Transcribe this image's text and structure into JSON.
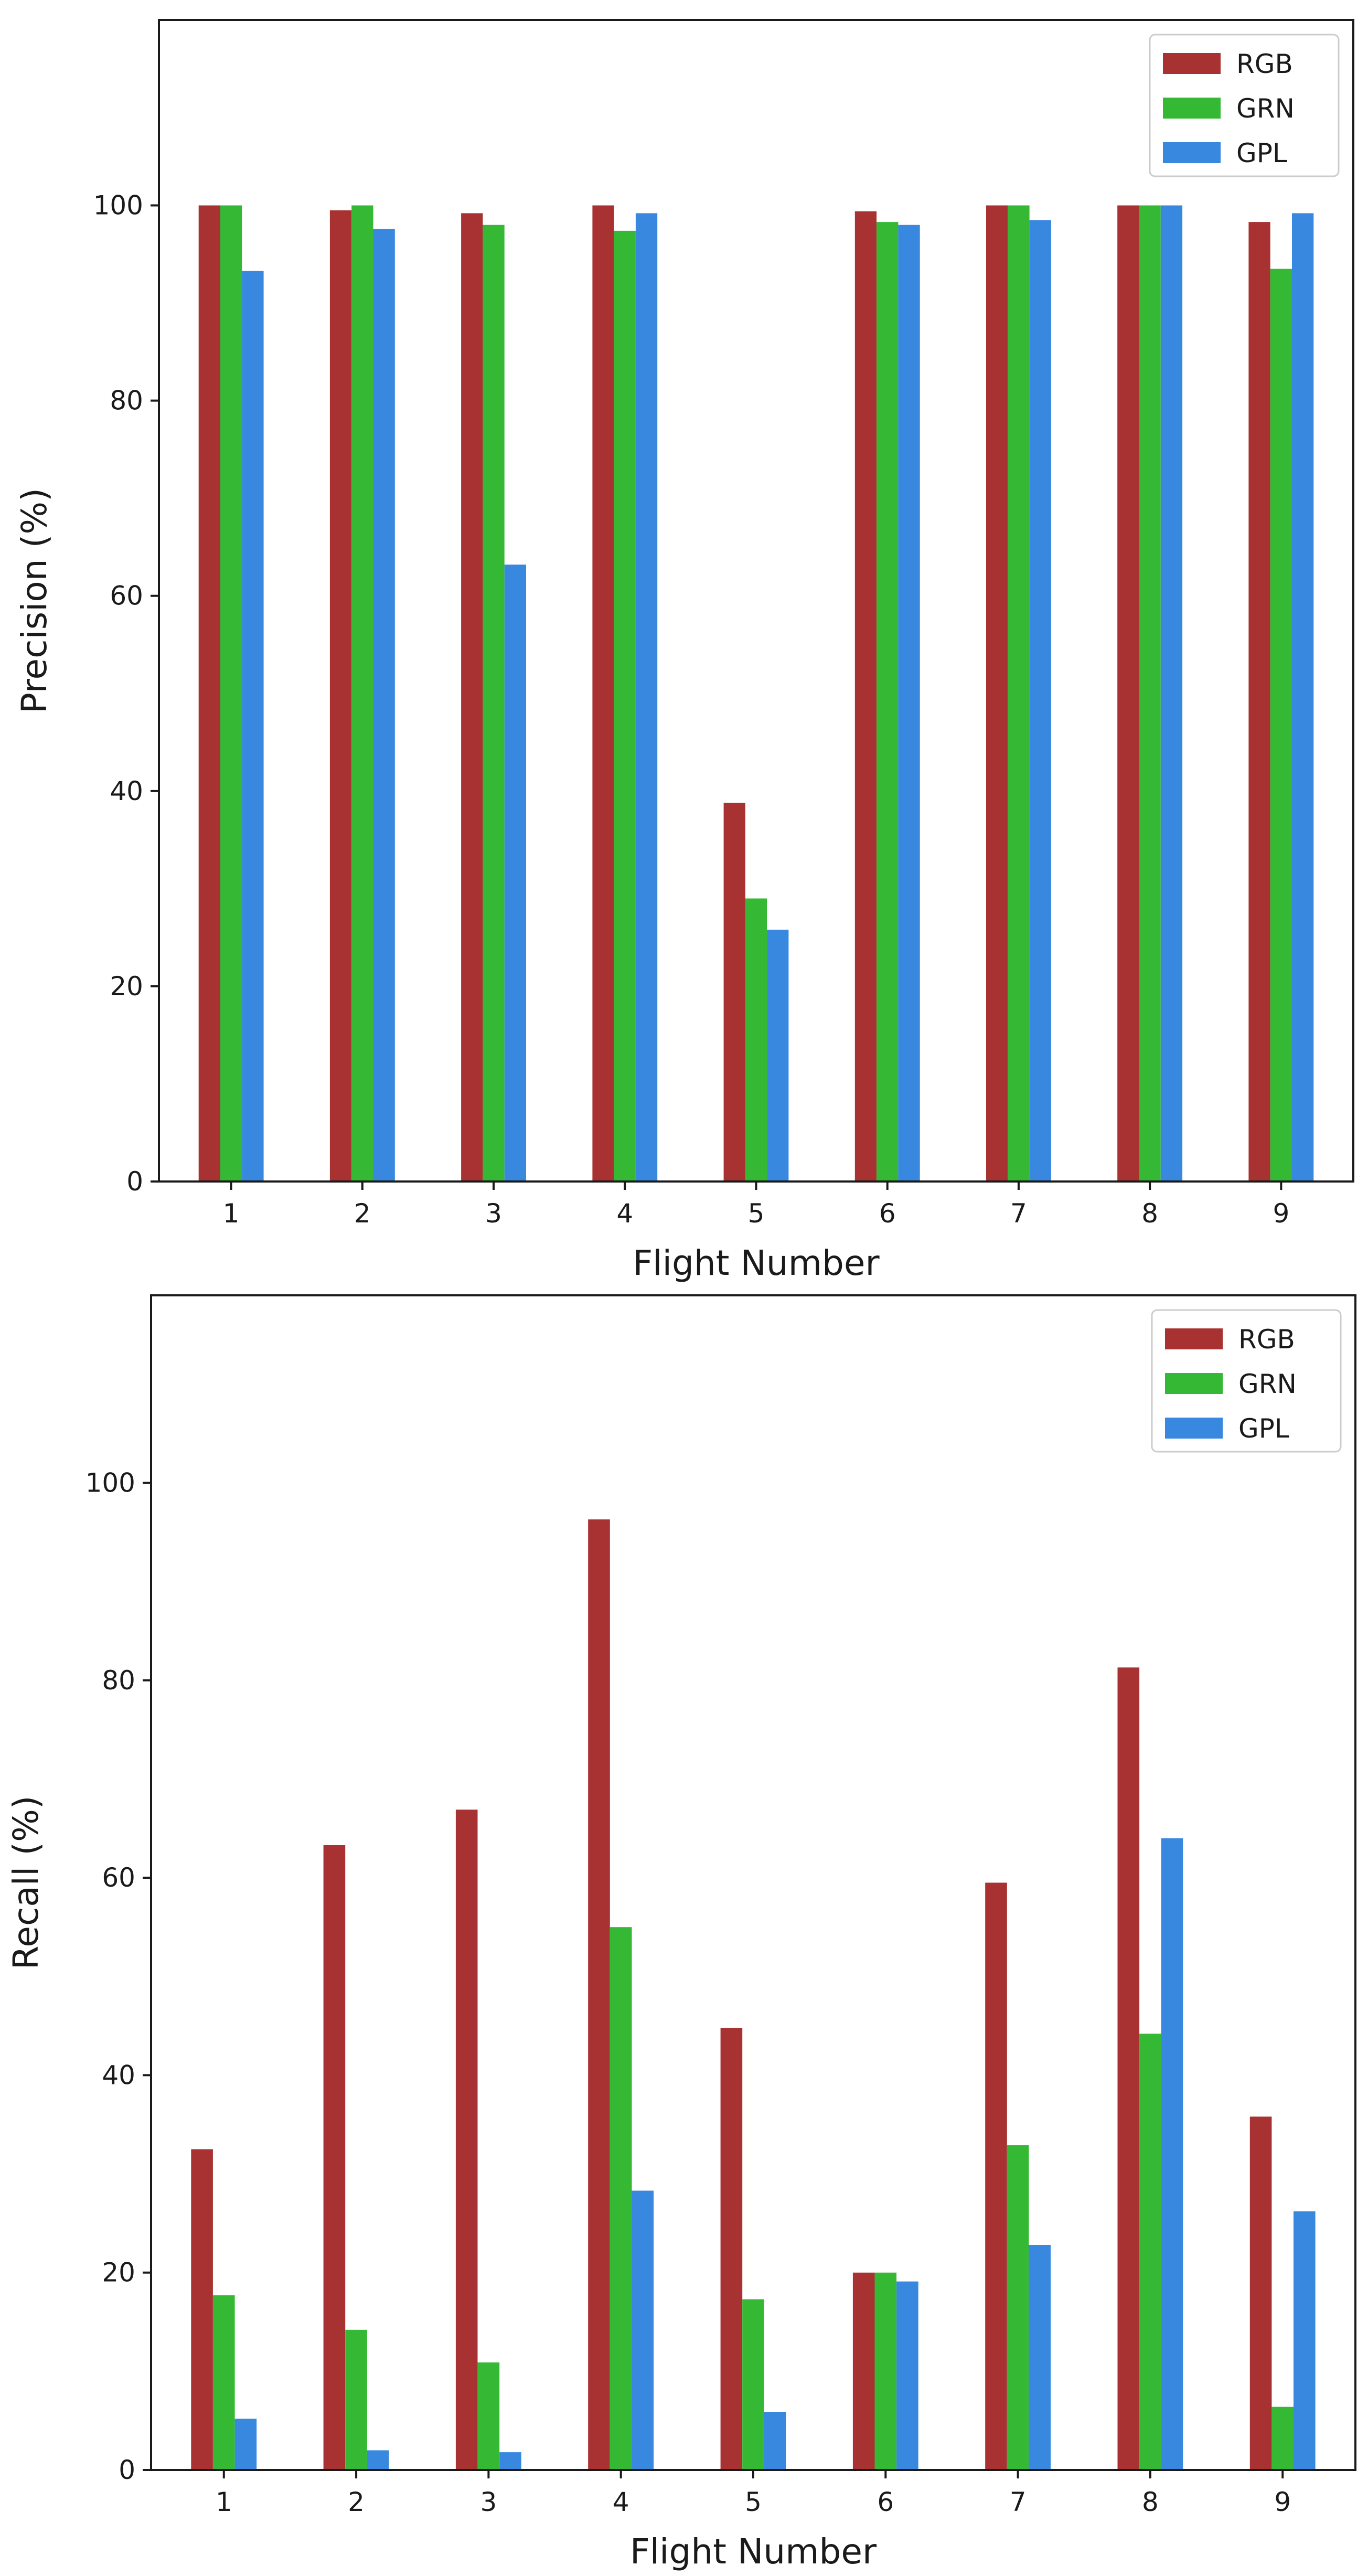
{
  "colors": {
    "RGB": "#a83232",
    "GRN": "#35b935",
    "GPL": "#3888e0",
    "axis": "#1a1a1a"
  },
  "chart_data": [
    {
      "type": "bar",
      "title": "",
      "xlabel": "Flight Number",
      "ylabel": "Precision (%)",
      "ylim": [
        0,
        119
      ],
      "yticks": [
        0,
        20,
        40,
        60,
        80,
        100
      ],
      "categories": [
        "1",
        "2",
        "3",
        "4",
        "5",
        "6",
        "7",
        "8",
        "9"
      ],
      "legend_position": "top-right",
      "series": [
        {
          "name": "RGB",
          "values": [
            100,
            99.5,
            99.2,
            100,
            38.8,
            99.4,
            100,
            100,
            98.3
          ]
        },
        {
          "name": "GRN",
          "values": [
            100,
            100,
            98.0,
            97.4,
            29.0,
            98.3,
            100,
            100,
            93.5
          ]
        },
        {
          "name": "GPL",
          "values": [
            93.3,
            97.6,
            63.2,
            99.2,
            25.8,
            98.0,
            98.5,
            100,
            99.2
          ]
        }
      ]
    },
    {
      "type": "bar",
      "title": "",
      "xlabel": "Flight Number",
      "ylabel": "Recall (%)",
      "ylim": [
        0,
        119
      ],
      "yticks": [
        0,
        20,
        40,
        60,
        80,
        100
      ],
      "categories": [
        "1",
        "2",
        "3",
        "4",
        "5",
        "6",
        "7",
        "8",
        "9"
      ],
      "legend_position": "top-right",
      "series": [
        {
          "name": "RGB",
          "values": [
            32.5,
            63.3,
            66.9,
            96.3,
            44.8,
            20.0,
            59.5,
            81.3,
            35.8
          ]
        },
        {
          "name": "GRN",
          "values": [
            17.7,
            14.2,
            10.9,
            55.0,
            17.3,
            20.0,
            32.9,
            44.2,
            6.4
          ]
        },
        {
          "name": "GPL",
          "values": [
            5.2,
            2.0,
            1.8,
            28.3,
            5.9,
            19.1,
            22.8,
            64.0,
            26.2
          ]
        }
      ]
    }
  ]
}
